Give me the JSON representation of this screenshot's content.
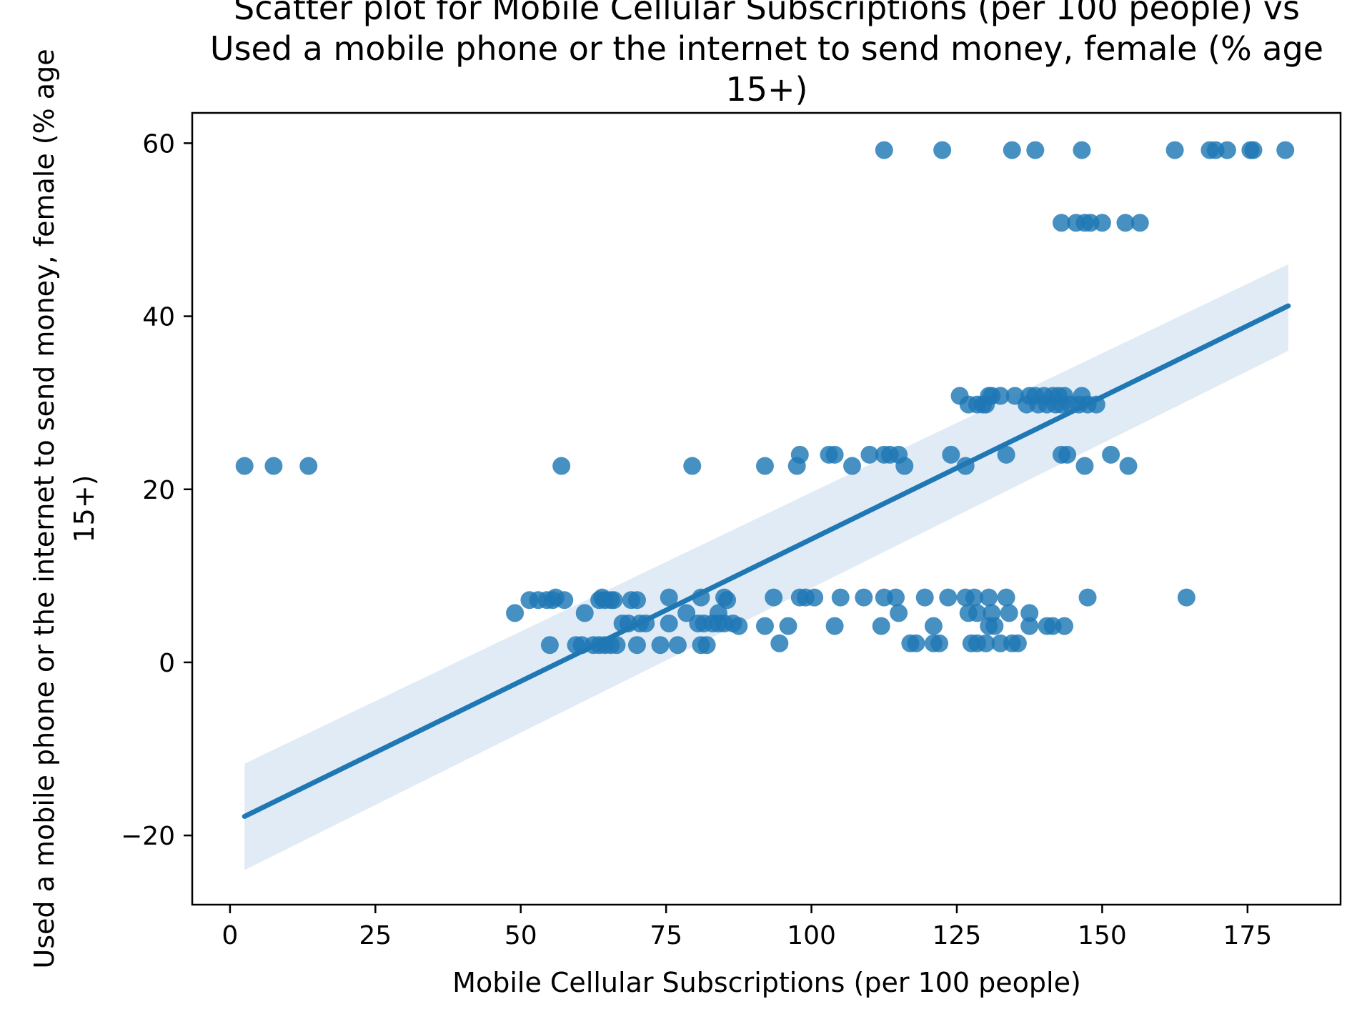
{
  "chart_data": {
    "type": "scatter",
    "title_lines": [
      "Scatter plot for Mobile Cellular Subscriptions (per 100 people) vs",
      "Used a mobile phone or the internet to send money, female (% age",
      "15+)"
    ],
    "xlabel": "Mobile Cellular Subscriptions (per 100 people)",
    "ylabel_lines": [
      "Used a mobile phone or the internet to send money, female (% age",
      "15+)"
    ],
    "xlim": [
      -6.5,
      191
    ],
    "ylim": [
      -28,
      63.5
    ],
    "x_ticks": [
      0,
      25,
      50,
      75,
      100,
      125,
      150,
      175
    ],
    "y_ticks": [
      -20,
      0,
      20,
      40,
      60
    ],
    "x_tick_labels": [
      "0",
      "25",
      "50",
      "75",
      "100",
      "125",
      "150",
      "175"
    ],
    "y_tick_labels": [
      "−20",
      "0",
      "20",
      "40",
      "60"
    ],
    "grid": false,
    "legend": "none",
    "colors": {
      "points": "#1f77b4",
      "line": "#1f77b4",
      "band": "#c6dbef"
    },
    "regression": {
      "x": [
        2.5,
        182
      ],
      "y": [
        -17.8,
        41.2
      ],
      "ci_lower": [
        -24,
        36
      ],
      "ci_upper": [
        -11.7,
        46
      ]
    },
    "points": [
      [
        2.5,
        22.7
      ],
      [
        7.5,
        22.7
      ],
      [
        13.5,
        22.7
      ],
      [
        57,
        22.7
      ],
      [
        79.5,
        22.7
      ],
      [
        92,
        22.7
      ],
      [
        97.5,
        22.7
      ],
      [
        107,
        22.7
      ],
      [
        116,
        22.7
      ],
      [
        126.5,
        22.7
      ],
      [
        147,
        22.7
      ],
      [
        154.5,
        22.7
      ],
      [
        98,
        24
      ],
      [
        103,
        24
      ],
      [
        104,
        24
      ],
      [
        110,
        24
      ],
      [
        112.5,
        24
      ],
      [
        113.5,
        24
      ],
      [
        115,
        24
      ],
      [
        124,
        24
      ],
      [
        133.5,
        24
      ],
      [
        143,
        24
      ],
      [
        144,
        24
      ],
      [
        151.5,
        24
      ],
      [
        125.5,
        30.8
      ],
      [
        127,
        29.8
      ],
      [
        128.5,
        29.8
      ],
      [
        129.5,
        29.8
      ],
      [
        130,
        29.8
      ],
      [
        130.5,
        30.8
      ],
      [
        131,
        30.8
      ],
      [
        132.5,
        30.8
      ],
      [
        135,
        30.8
      ],
      [
        137,
        29.8
      ],
      [
        137.5,
        30.8
      ],
      [
        138.5,
        30.8
      ],
      [
        139,
        29.8
      ],
      [
        140,
        30.8
      ],
      [
        140.5,
        29.8
      ],
      [
        141.5,
        30.8
      ],
      [
        142,
        29.8
      ],
      [
        142.5,
        30.8
      ],
      [
        143,
        29.8
      ],
      [
        143.5,
        30.8
      ],
      [
        144.5,
        29.8
      ],
      [
        146,
        29.8
      ],
      [
        146.5,
        30.8
      ],
      [
        147.5,
        29.8
      ],
      [
        149,
        29.8
      ],
      [
        143,
        50.8
      ],
      [
        145.5,
        50.8
      ],
      [
        147,
        50.8
      ],
      [
        148,
        50.8
      ],
      [
        150,
        50.8
      ],
      [
        154,
        50.8
      ],
      [
        156.5,
        50.8
      ],
      [
        112.5,
        59.2
      ],
      [
        122.5,
        59.2
      ],
      [
        134.5,
        59.2
      ],
      [
        138.5,
        59.2
      ],
      [
        146.5,
        59.2
      ],
      [
        162.5,
        59.2
      ],
      [
        168.5,
        59.2
      ],
      [
        169.5,
        59.2
      ],
      [
        171.5,
        59.2
      ],
      [
        175.5,
        59.2
      ],
      [
        176,
        59.2
      ],
      [
        181.5,
        59.2
      ],
      [
        49,
        5.7
      ],
      [
        51.5,
        7.2
      ],
      [
        53,
        7.2
      ],
      [
        54.5,
        7.2
      ],
      [
        55.5,
        7.2
      ],
      [
        56,
        7.5
      ],
      [
        57.5,
        7.2
      ],
      [
        61,
        5.7
      ],
      [
        63.5,
        7.2
      ],
      [
        64,
        7.5
      ],
      [
        64.5,
        7.2
      ],
      [
        65.5,
        7.2
      ],
      [
        66,
        7.2
      ],
      [
        69,
        7.2
      ],
      [
        70,
        7.2
      ],
      [
        75.5,
        7.5
      ],
      [
        78.5,
        5.7
      ],
      [
        81,
        7.5
      ],
      [
        84,
        5.7
      ],
      [
        85,
        7.5
      ],
      [
        85.5,
        7.2
      ],
      [
        93.5,
        7.5
      ],
      [
        98,
        7.5
      ],
      [
        99,
        7.5
      ],
      [
        100.5,
        7.5
      ],
      [
        105,
        7.5
      ],
      [
        109,
        7.5
      ],
      [
        112.5,
        7.5
      ],
      [
        114.5,
        7.5
      ],
      [
        115,
        5.7
      ],
      [
        119.5,
        7.5
      ],
      [
        123.5,
        7.5
      ],
      [
        126.5,
        7.5
      ],
      [
        127,
        5.7
      ],
      [
        128,
        7.5
      ],
      [
        128.5,
        5.7
      ],
      [
        130.5,
        7.5
      ],
      [
        131,
        5.7
      ],
      [
        133.5,
        7.5
      ],
      [
        134,
        5.7
      ],
      [
        137.5,
        5.7
      ],
      [
        147.5,
        7.5
      ],
      [
        164.5,
        7.5
      ],
      [
        67.5,
        4.5
      ],
      [
        68.5,
        4.5
      ],
      [
        70.5,
        4.5
      ],
      [
        71.5,
        4.5
      ],
      [
        75.5,
        4.5
      ],
      [
        80.5,
        4.5
      ],
      [
        81.5,
        4.5
      ],
      [
        83,
        4.5
      ],
      [
        84,
        4.5
      ],
      [
        85,
        4.5
      ],
      [
        86.5,
        4.5
      ],
      [
        87.5,
        4.2
      ],
      [
        92,
        4.2
      ],
      [
        96,
        4.2
      ],
      [
        104,
        4.2
      ],
      [
        112,
        4.2
      ],
      [
        121,
        4.2
      ],
      [
        130.5,
        4.2
      ],
      [
        131.5,
        4.2
      ],
      [
        137.5,
        4.2
      ],
      [
        140.5,
        4.2
      ],
      [
        141.5,
        4.2
      ],
      [
        143.5,
        4.2
      ],
      [
        55,
        2
      ],
      [
        59.5,
        2
      ],
      [
        60.5,
        2
      ],
      [
        62.5,
        2
      ],
      [
        63.5,
        2
      ],
      [
        64.5,
        2
      ],
      [
        65.5,
        2
      ],
      [
        66.5,
        2
      ],
      [
        70,
        2
      ],
      [
        74,
        2
      ],
      [
        77,
        2
      ],
      [
        81,
        2
      ],
      [
        82,
        2
      ],
      [
        94.5,
        2.2
      ],
      [
        117,
        2.2
      ],
      [
        118,
        2.2
      ],
      [
        121,
        2.2
      ],
      [
        122,
        2.2
      ],
      [
        127.5,
        2.2
      ],
      [
        128.5,
        2.2
      ],
      [
        130,
        2.2
      ],
      [
        132.5,
        2.2
      ],
      [
        134.5,
        2.2
      ],
      [
        135.5,
        2.2
      ]
    ]
  }
}
